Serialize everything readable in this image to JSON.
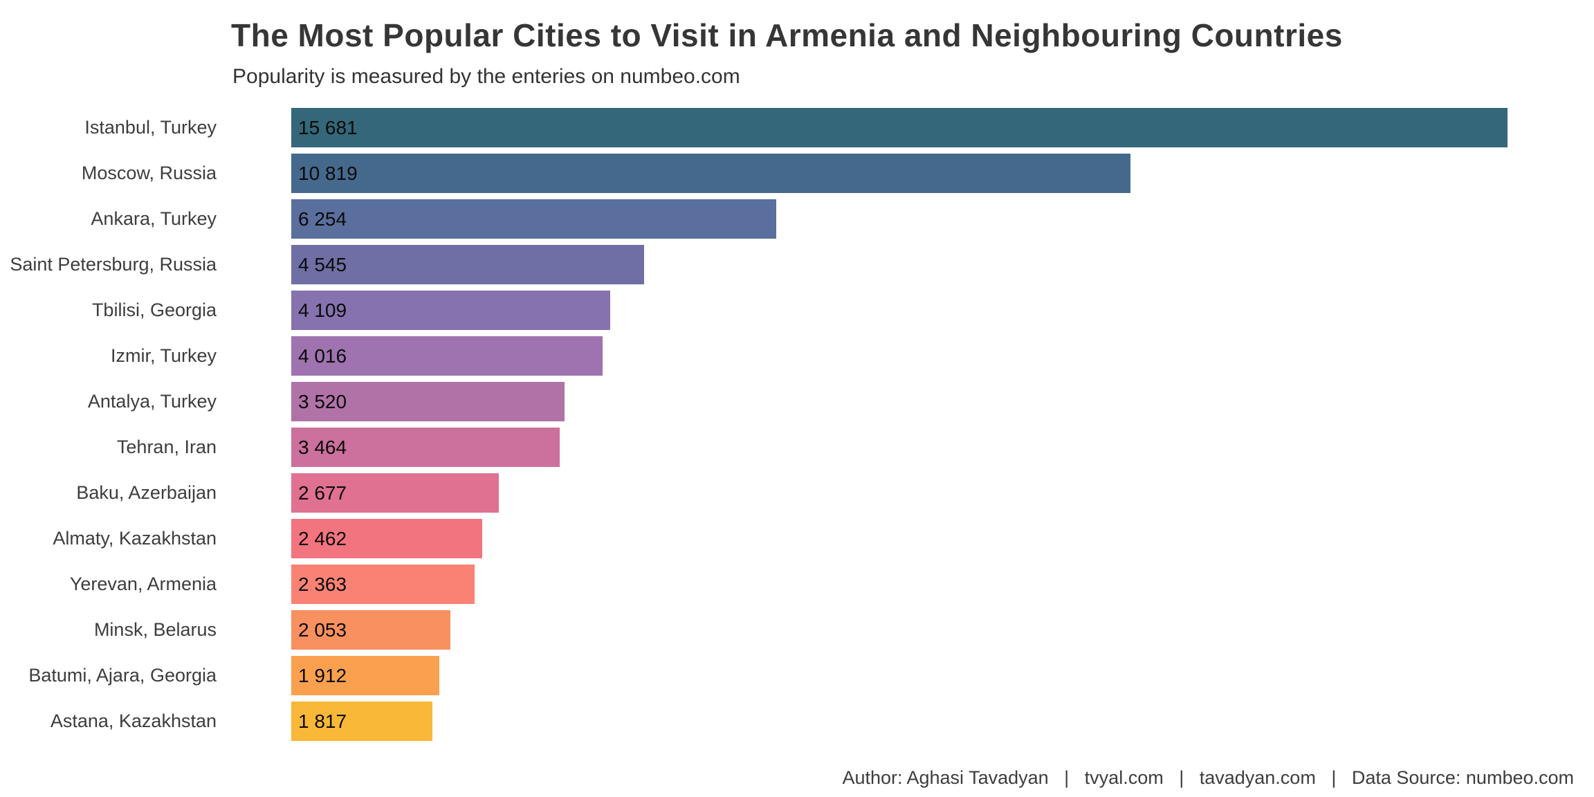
{
  "header": {
    "title": "The Most Popular Cities to Visit in Armenia and Neighbouring Countries",
    "subtitle": "Popularity is measured by the enteries on numbeo.com"
  },
  "footer": {
    "text": "Author: Aghasi Tavadyan   |   tvyal.com   |   tavadyan.com   |   Data Source: numbeo.com"
  },
  "chart_data": {
    "type": "bar",
    "orientation": "horizontal",
    "title": "The Most Popular Cities to Visit in Armenia and Neighbouring Countries",
    "subtitle": "Popularity is measured by the enteries on numbeo.com",
    "xlabel": "",
    "ylabel": "",
    "xlim": [
      0,
      15681
    ],
    "grid": false,
    "legend": false,
    "value_label_position": "inside-start",
    "categories": [
      "Istanbul, Turkey",
      "Moscow, Russia",
      "Ankara, Turkey",
      "Saint Petersburg, Russia",
      "Tbilisi, Georgia",
      "Izmir, Turkey",
      "Antalya, Turkey",
      "Tehran, Iran",
      "Baku, Azerbaijan",
      "Almaty, Kazakhstan",
      "Yerevan, Armenia",
      "Minsk, Belarus",
      "Batumi, Ajara, Georgia",
      "Astana, Kazakhstan"
    ],
    "values": [
      15681,
      10819,
      6254,
      4545,
      4109,
      4016,
      3520,
      3464,
      2677,
      2462,
      2363,
      2053,
      1912,
      1817
    ],
    "value_labels": [
      "15 681",
      "10 819",
      "6 254",
      "4 545",
      "4 109",
      "4 016",
      "3 520",
      "3 464",
      "2 677",
      "2 462",
      "2 363",
      "2 053",
      "1 912",
      "1 817"
    ],
    "bar_colors": [
      "#336779",
      "#45698d",
      "#5a6f9e",
      "#6f6fa6",
      "#8572ae",
      "#9e73af",
      "#b172a8",
      "#cc709d",
      "#e07191",
      "#f2747f",
      "#f98275",
      "#f9905f",
      "#faa04e",
      "#f9b837"
    ],
    "colors_meaning": {
      "background": "#ffffff",
      "title_color": "#363636",
      "label_color": "#3d3d3d",
      "value_text_color": "#0a0a0a"
    }
  }
}
